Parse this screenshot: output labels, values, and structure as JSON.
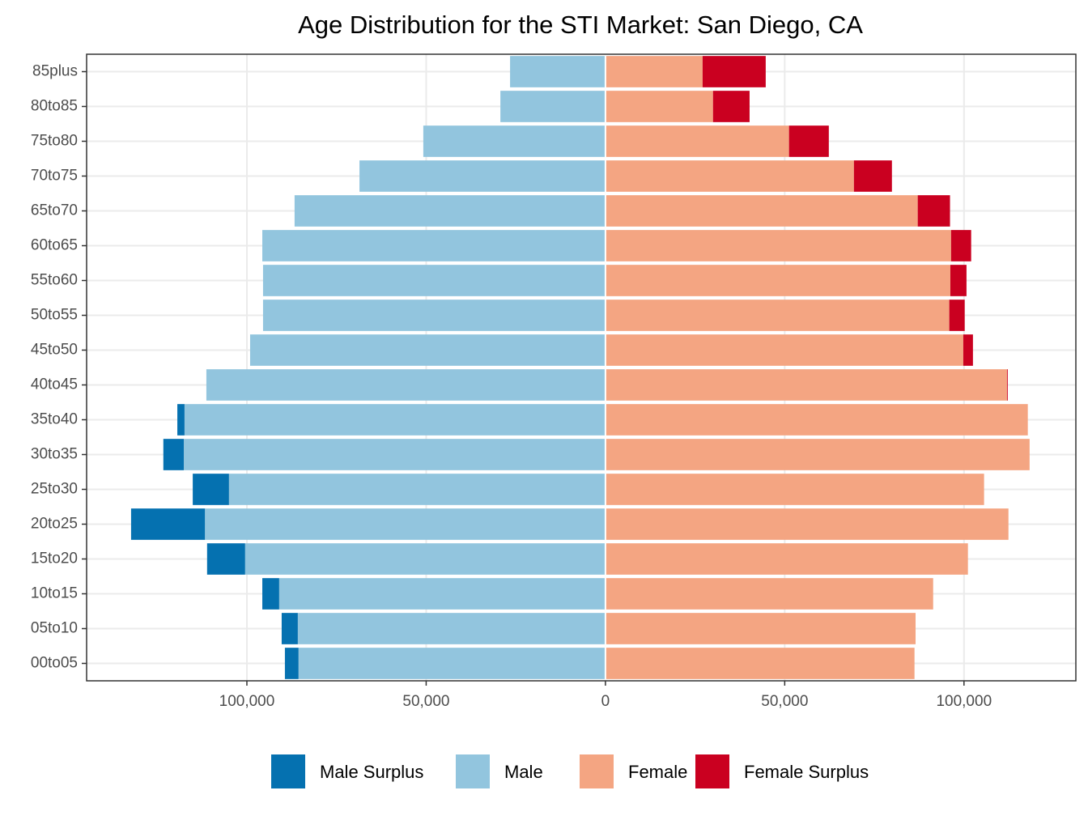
{
  "chart_data": {
    "type": "bar",
    "orientation": "horizontal",
    "title": "Age Distribution for the STI Market: San Diego, CA",
    "categories": [
      "00to05",
      "05to10",
      "10to15",
      "15to20",
      "20to25",
      "25to30",
      "30to35",
      "35to40",
      "40to45",
      "45to50",
      "50to55",
      "55to60",
      "60to65",
      "65to70",
      "70to75",
      "75to80",
      "80to85",
      "85plus"
    ],
    "series": [
      {
        "name": "Male Surplus",
        "color": "#0571b0",
        "values": [
          -3800,
          -4500,
          -4700,
          -10600,
          -20600,
          -10100,
          -5700,
          -2000,
          0,
          0,
          0,
          0,
          0,
          0,
          0,
          0,
          0,
          0
        ]
      },
      {
        "name": "Male",
        "color": "#92c5de",
        "values": [
          -85600,
          -85800,
          -91000,
          -100500,
          -111700,
          -105000,
          -117600,
          -117400,
          -111300,
          -99100,
          -95500,
          -95500,
          -95700,
          -86700,
          -68600,
          -50800,
          -29300,
          -26600
        ]
      },
      {
        "name": "Female",
        "color": "#f4a582",
        "values": [
          86200,
          86500,
          91400,
          101100,
          112400,
          105600,
          118300,
          117800,
          112000,
          99800,
          95900,
          96200,
          96400,
          87100,
          69300,
          51200,
          30000,
          27100
        ]
      },
      {
        "name": "Female Surplus",
        "color": "#ca0020",
        "values": [
          0,
          0,
          0,
          0,
          0,
          0,
          0,
          0,
          200,
          2700,
          4300,
          4500,
          5600,
          9000,
          10600,
          11100,
          10200,
          17600
        ]
      }
    ],
    "xlim": [
      -144700,
      131200
    ],
    "xticks": [
      {
        "value": -100000,
        "label": "100,000"
      },
      {
        "value": -50000,
        "label": "50,000"
      },
      0,
      {
        "value": 50000,
        "label": "50,000"
      },
      {
        "value": 100000,
        "label": "100,000"
      }
    ],
    "grid": true,
    "legend": "bottom"
  }
}
